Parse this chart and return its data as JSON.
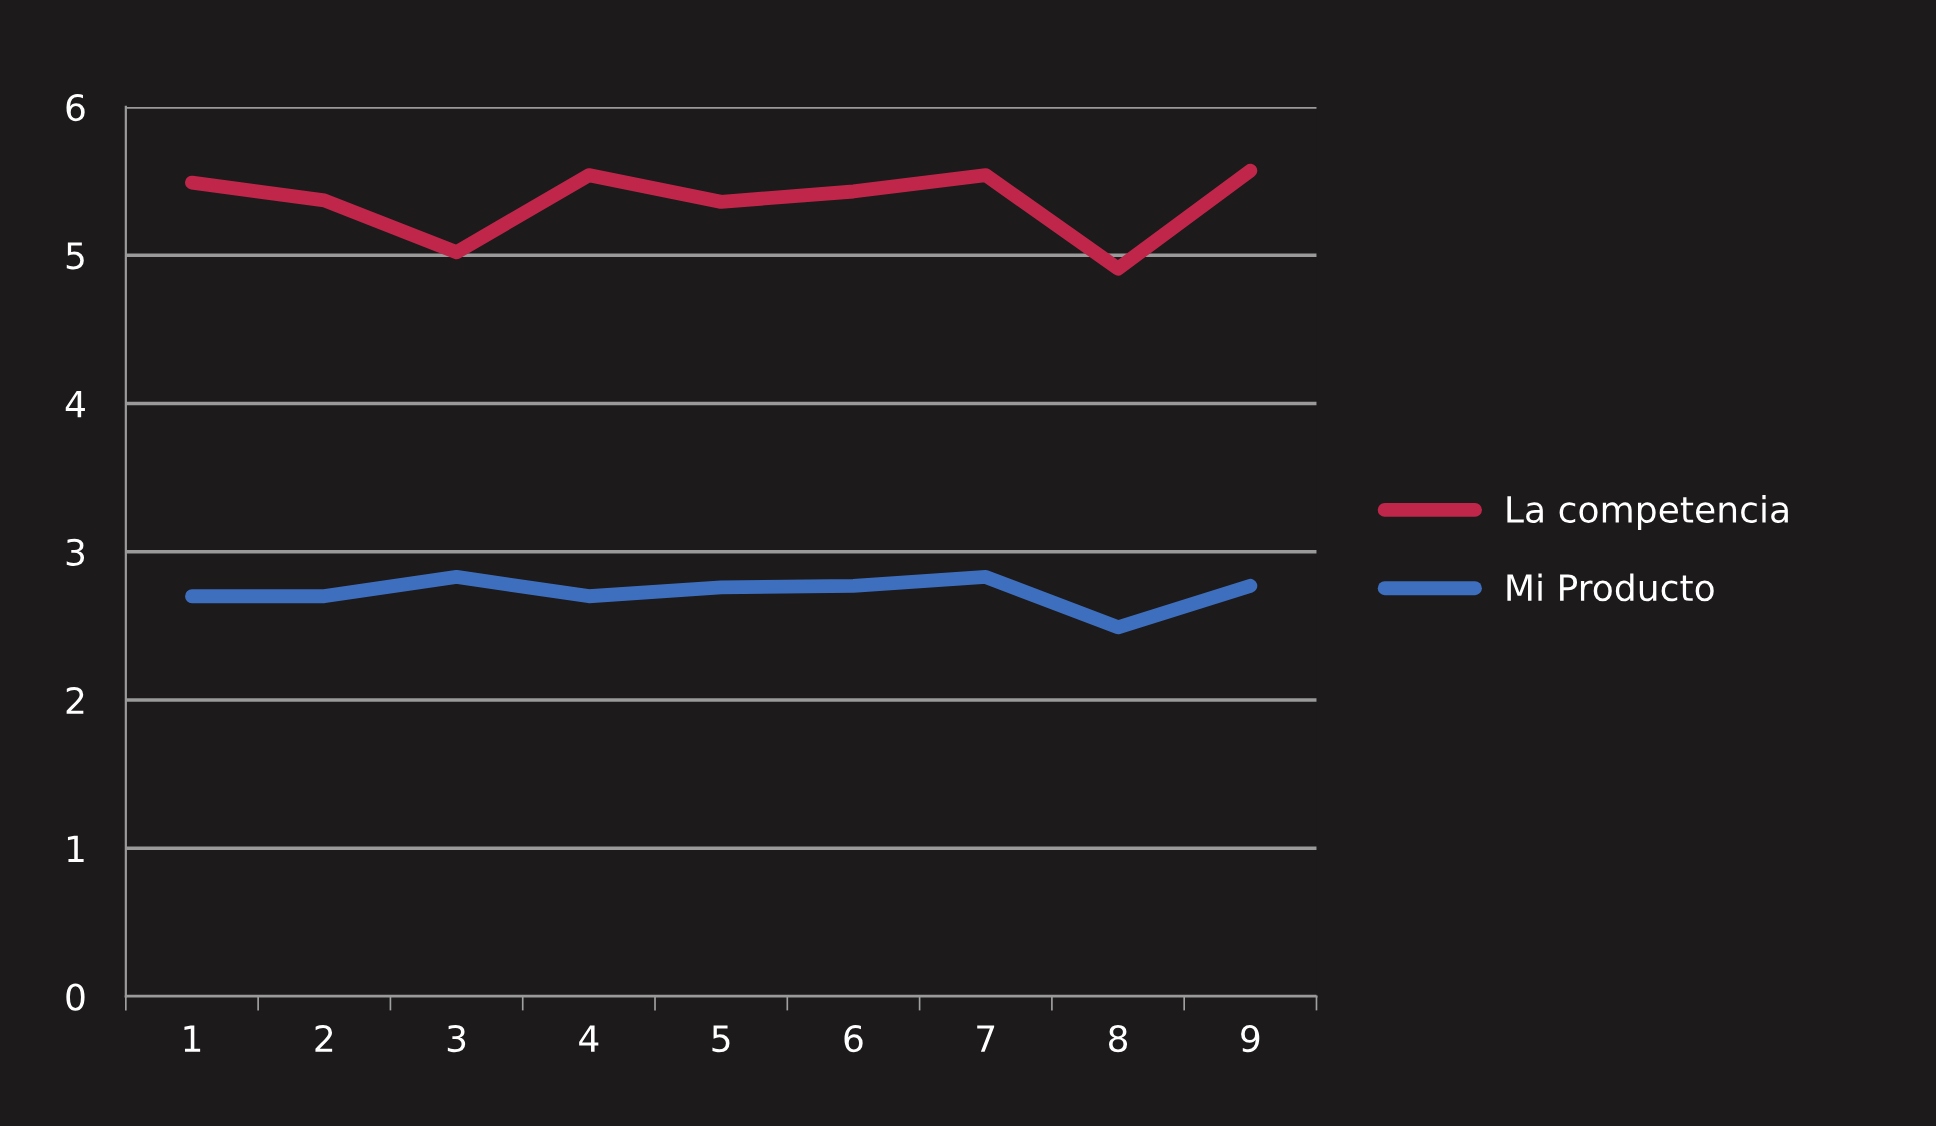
{
  "chart_data": {
    "type": "line",
    "categories": [
      "1",
      "2",
      "3",
      "4",
      "5",
      "6",
      "7",
      "8",
      "9"
    ],
    "series": [
      {
        "name": "La competencia",
        "color": "#c0264a",
        "values": [
          5.49,
          5.37,
          5.02,
          5.54,
          5.36,
          5.43,
          5.54,
          4.91,
          5.57
        ]
      },
      {
        "name": "Mi Producto",
        "color": "#3e6fbf",
        "values": [
          2.7,
          2.7,
          2.83,
          2.7,
          2.76,
          2.77,
          2.83,
          2.49,
          2.77
        ]
      }
    ],
    "ylim": [
      0,
      6
    ],
    "yticks": [
      0,
      1,
      2,
      3,
      4,
      5,
      6
    ],
    "grid": "y",
    "legend": "right",
    "marker": "none",
    "line_style": "solid"
  }
}
